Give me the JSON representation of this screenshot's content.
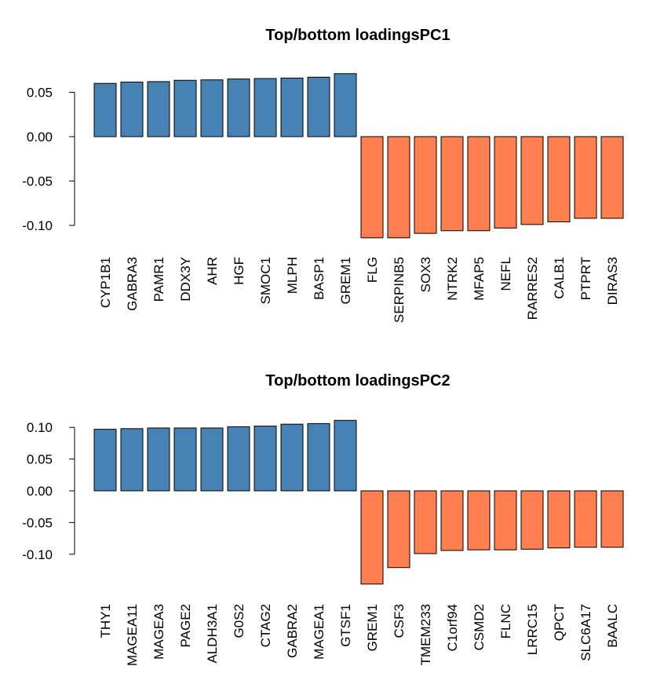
{
  "colors": {
    "positive": "#4682B4",
    "negative": "#FF7F50"
  },
  "chart_data": [
    {
      "type": "bar",
      "title": "Top/bottom loadingsPC1",
      "ylim": [
        -0.12,
        0.075
      ],
      "yticks": [
        0.05,
        0.0,
        -0.05,
        -0.1
      ],
      "ytick_labels": [
        "0.05",
        "0.00",
        "-0.05",
        "-0.10"
      ],
      "categories": [
        "CYP1B1",
        "GABRA3",
        "PAMR1",
        "DDX3Y",
        "AHR",
        "HGF",
        "SMOC1",
        "MLPH",
        "BASP1",
        "GREM1",
        "FLG",
        "SERPINB5",
        "SOX3",
        "NTRK2",
        "MFAP5",
        "NEFL",
        "RARRES2",
        "CALB1",
        "PTPRT",
        "DIRAS3"
      ],
      "values": [
        0.06,
        0.0615,
        0.062,
        0.0635,
        0.064,
        0.065,
        0.0655,
        0.066,
        0.067,
        0.071,
        -0.114,
        -0.114,
        -0.109,
        -0.106,
        -0.106,
        -0.103,
        -0.099,
        -0.096,
        -0.092,
        -0.092
      ]
    },
    {
      "type": "bar",
      "title": "Top/bottom loadingsPC2",
      "ylim": [
        -0.15,
        0.12
      ],
      "yticks": [
        0.1,
        0.05,
        0.0,
        -0.05,
        -0.1
      ],
      "ytick_labels": [
        "0.10",
        "0.05",
        "0.00",
        "-0.05",
        "-0.10"
      ],
      "categories": [
        "THY1",
        "MAGEA11",
        "MAGEA3",
        "PAGE2",
        "ALDH3A1",
        "G0S2",
        "CTAG2",
        "GABRA2",
        "MAGEA1",
        "GTSF1",
        "GREM1",
        "CSF3",
        "TMEM233",
        "C1orf94",
        "CSMD2",
        "FLNC",
        "LRRC15",
        "QPCT",
        "SLC6A17",
        "BAALC"
      ],
      "values": [
        0.097,
        0.098,
        0.099,
        0.099,
        0.099,
        0.101,
        0.102,
        0.105,
        0.106,
        0.111,
        -0.147,
        -0.121,
        -0.099,
        -0.094,
        -0.093,
        -0.093,
        -0.092,
        -0.09,
        -0.089,
        -0.089
      ]
    }
  ]
}
